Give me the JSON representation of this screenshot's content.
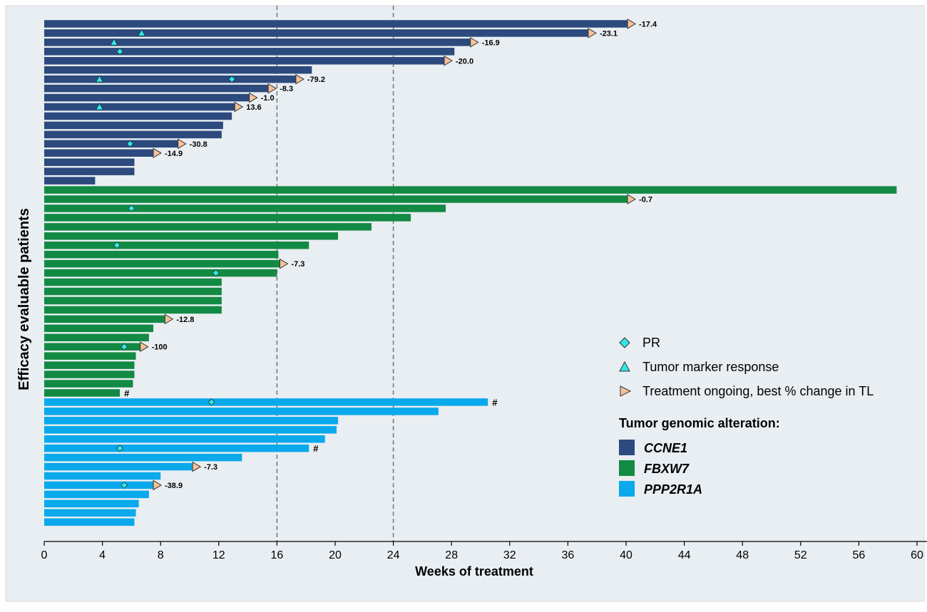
{
  "chart_data": {
    "type": "bar",
    "orientation": "horizontal",
    "xlabel": "Weeks of treatment",
    "ylabel": "Efficacy evaluable patients",
    "xlim": [
      0,
      61
    ],
    "xticks": [
      0,
      4,
      8,
      12,
      16,
      20,
      24,
      28,
      32,
      36,
      40,
      44,
      48,
      52,
      56,
      60
    ],
    "grid": false,
    "reference_lines": [
      16,
      24
    ],
    "legend_position": "right",
    "legend": {
      "markers": [
        {
          "label": "PR",
          "symbol": "diamond",
          "color": "#33e6e6"
        },
        {
          "label": "Tumor marker response",
          "symbol": "triangle",
          "color": "#33e6e6"
        },
        {
          "label": "Treatment ongoing, best % change in TL",
          "symbol": "right-triangle",
          "color": "#f5c29a"
        }
      ],
      "groups_title": "Tumor genomic alteration:",
      "groups": [
        {
          "label": "CCNE1",
          "color": "#2c4a7e"
        },
        {
          "label": "FBXW7",
          "color": "#138a43"
        },
        {
          "label": "PPP2R1A",
          "color": "#0aa9ec"
        }
      ]
    },
    "series": [
      {
        "group": "CCNE1",
        "weeks": 40.1,
        "ongoing": true,
        "note": "-17.4"
      },
      {
        "group": "CCNE1",
        "weeks": 37.4,
        "ongoing": true,
        "note": "-23.1",
        "marker_response": 6.7
      },
      {
        "group": "CCNE1",
        "weeks": 29.3,
        "ongoing": true,
        "note": "-16.9",
        "marker_response": 4.8
      },
      {
        "group": "CCNE1",
        "weeks": 28.2,
        "pr": 5.2
      },
      {
        "group": "CCNE1",
        "weeks": 27.5,
        "ongoing": true,
        "note": "-20.0"
      },
      {
        "group": "CCNE1",
        "weeks": 18.4
      },
      {
        "group": "CCNE1",
        "weeks": 17.3,
        "ongoing": true,
        "note": "-79.2",
        "pr": 12.9,
        "marker_response": 3.8
      },
      {
        "group": "CCNE1",
        "weeks": 15.4,
        "ongoing": true,
        "note": "-8.3"
      },
      {
        "group": "CCNE1",
        "weeks": 14.1,
        "ongoing": true,
        "note": "-1.0"
      },
      {
        "group": "CCNE1",
        "weeks": 13.1,
        "ongoing": true,
        "note": "13.6",
        "marker_response": 3.8
      },
      {
        "group": "CCNE1",
        "weeks": 12.9
      },
      {
        "group": "CCNE1",
        "weeks": 12.3
      },
      {
        "group": "CCNE1",
        "weeks": 12.2
      },
      {
        "group": "CCNE1",
        "weeks": 9.2,
        "ongoing": true,
        "note": "-30.8",
        "pr": 5.9
      },
      {
        "group": "CCNE1",
        "weeks": 7.5,
        "ongoing": true,
        "note": "-14.9"
      },
      {
        "group": "CCNE1",
        "weeks": 6.2
      },
      {
        "group": "CCNE1",
        "weeks": 6.2
      },
      {
        "group": "CCNE1",
        "weeks": 3.5
      },
      {
        "group": "FBXW7",
        "weeks": 58.6
      },
      {
        "group": "FBXW7",
        "weeks": 40.1,
        "ongoing": true,
        "note": "-0.7"
      },
      {
        "group": "FBXW7",
        "weeks": 27.6,
        "pr": 6.0
      },
      {
        "group": "FBXW7",
        "weeks": 25.2
      },
      {
        "group": "FBXW7",
        "weeks": 22.5
      },
      {
        "group": "FBXW7",
        "weeks": 20.2
      },
      {
        "group": "FBXW7",
        "weeks": 18.2,
        "pr": 5.0
      },
      {
        "group": "FBXW7",
        "weeks": 16.1
      },
      {
        "group": "FBXW7",
        "weeks": 16.2,
        "ongoing": true,
        "note": "-7.3"
      },
      {
        "group": "FBXW7",
        "weeks": 16.0,
        "pr": 11.8
      },
      {
        "group": "FBXW7",
        "weeks": 12.2
      },
      {
        "group": "FBXW7",
        "weeks": 12.2
      },
      {
        "group": "FBXW7",
        "weeks": 12.2
      },
      {
        "group": "FBXW7",
        "weeks": 12.2
      },
      {
        "group": "FBXW7",
        "weeks": 8.3,
        "ongoing": true,
        "note": "-12.8"
      },
      {
        "group": "FBXW7",
        "weeks": 7.5
      },
      {
        "group": "FBXW7",
        "weeks": 7.2
      },
      {
        "group": "FBXW7",
        "weeks": 6.6,
        "ongoing": true,
        "note": "-100",
        "pr": 5.5
      },
      {
        "group": "FBXW7",
        "weeks": 6.3
      },
      {
        "group": "FBXW7",
        "weeks": 6.2
      },
      {
        "group": "FBXW7",
        "weeks": 6.2
      },
      {
        "group": "FBXW7",
        "weeks": 6.1
      },
      {
        "group": "FBXW7",
        "weeks": 5.2,
        "hash": "#"
      },
      {
        "group": "PPP2R1A",
        "weeks": 30.5,
        "pr": 11.5,
        "hash": "#"
      },
      {
        "group": "PPP2R1A",
        "weeks": 27.1
      },
      {
        "group": "PPP2R1A",
        "weeks": 20.2
      },
      {
        "group": "PPP2R1A",
        "weeks": 20.1
      },
      {
        "group": "PPP2R1A",
        "weeks": 19.3
      },
      {
        "group": "PPP2R1A",
        "weeks": 18.2,
        "pr": 5.2,
        "hash": "#"
      },
      {
        "group": "PPP2R1A",
        "weeks": 13.6
      },
      {
        "group": "PPP2R1A",
        "weeks": 10.2,
        "ongoing": true,
        "note": "-7.3"
      },
      {
        "group": "PPP2R1A",
        "weeks": 8.0
      },
      {
        "group": "PPP2R1A",
        "weeks": 7.5,
        "ongoing": true,
        "note": "-38.9",
        "pr": 5.5
      },
      {
        "group": "PPP2R1A",
        "weeks": 7.2
      },
      {
        "group": "PPP2R1A",
        "weeks": 6.5
      },
      {
        "group": "PPP2R1A",
        "weeks": 6.3
      },
      {
        "group": "PPP2R1A",
        "weeks": 6.2
      }
    ]
  }
}
